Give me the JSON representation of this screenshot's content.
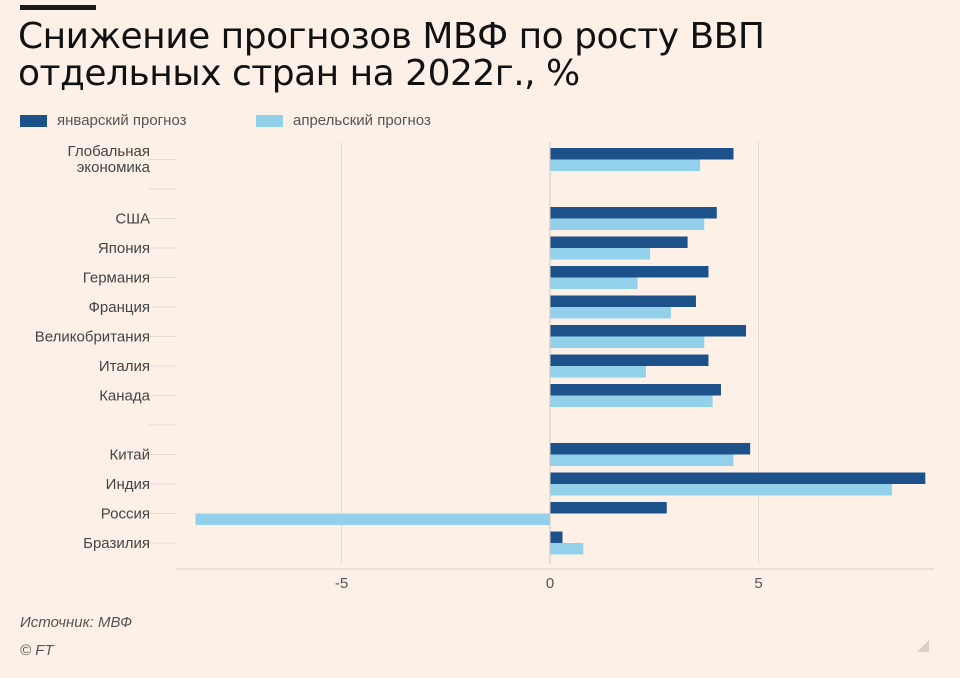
{
  "title": "Снижение прогнозов МВФ по росту ВВП отдельных стран на 2022г., %",
  "source": "Источник: МВФ",
  "copyright": "© FT",
  "colors": {
    "background": "#fdf1e7",
    "january": "#1d5189",
    "april": "#93d1ea",
    "grid": "#e3dcd5"
  },
  "chart_data": {
    "type": "bar",
    "orientation": "horizontal",
    "title": "Снижение прогнозов МВФ по росту ВВП отдельных стран на 2022г., %",
    "categories": [
      "Глобальная экономика",
      "",
      "США",
      "Япония",
      "Германия",
      "Франция",
      "Великобритания",
      "Италия",
      "Канада",
      "",
      "Китай",
      "Индия",
      "Россия",
      "Бразилия"
    ],
    "series": [
      {
        "name": "январский прогноз",
        "values": [
          4.4,
          null,
          4.0,
          3.3,
          3.8,
          3.5,
          4.7,
          3.8,
          4.1,
          null,
          4.8,
          9.0,
          2.8,
          0.3
        ]
      },
      {
        "name": "апрельский прогноз",
        "values": [
          3.6,
          null,
          3.7,
          2.4,
          2.1,
          2.9,
          3.7,
          2.3,
          3.9,
          null,
          4.4,
          8.2,
          -8.5,
          0.8
        ]
      }
    ],
    "xlim": [
      -9,
      9.2
    ],
    "xticks": [
      -5,
      0,
      5
    ],
    "xtick_labels": [
      "-5",
      "0",
      "5"
    ],
    "grid": true,
    "legend_position": "top-left"
  }
}
